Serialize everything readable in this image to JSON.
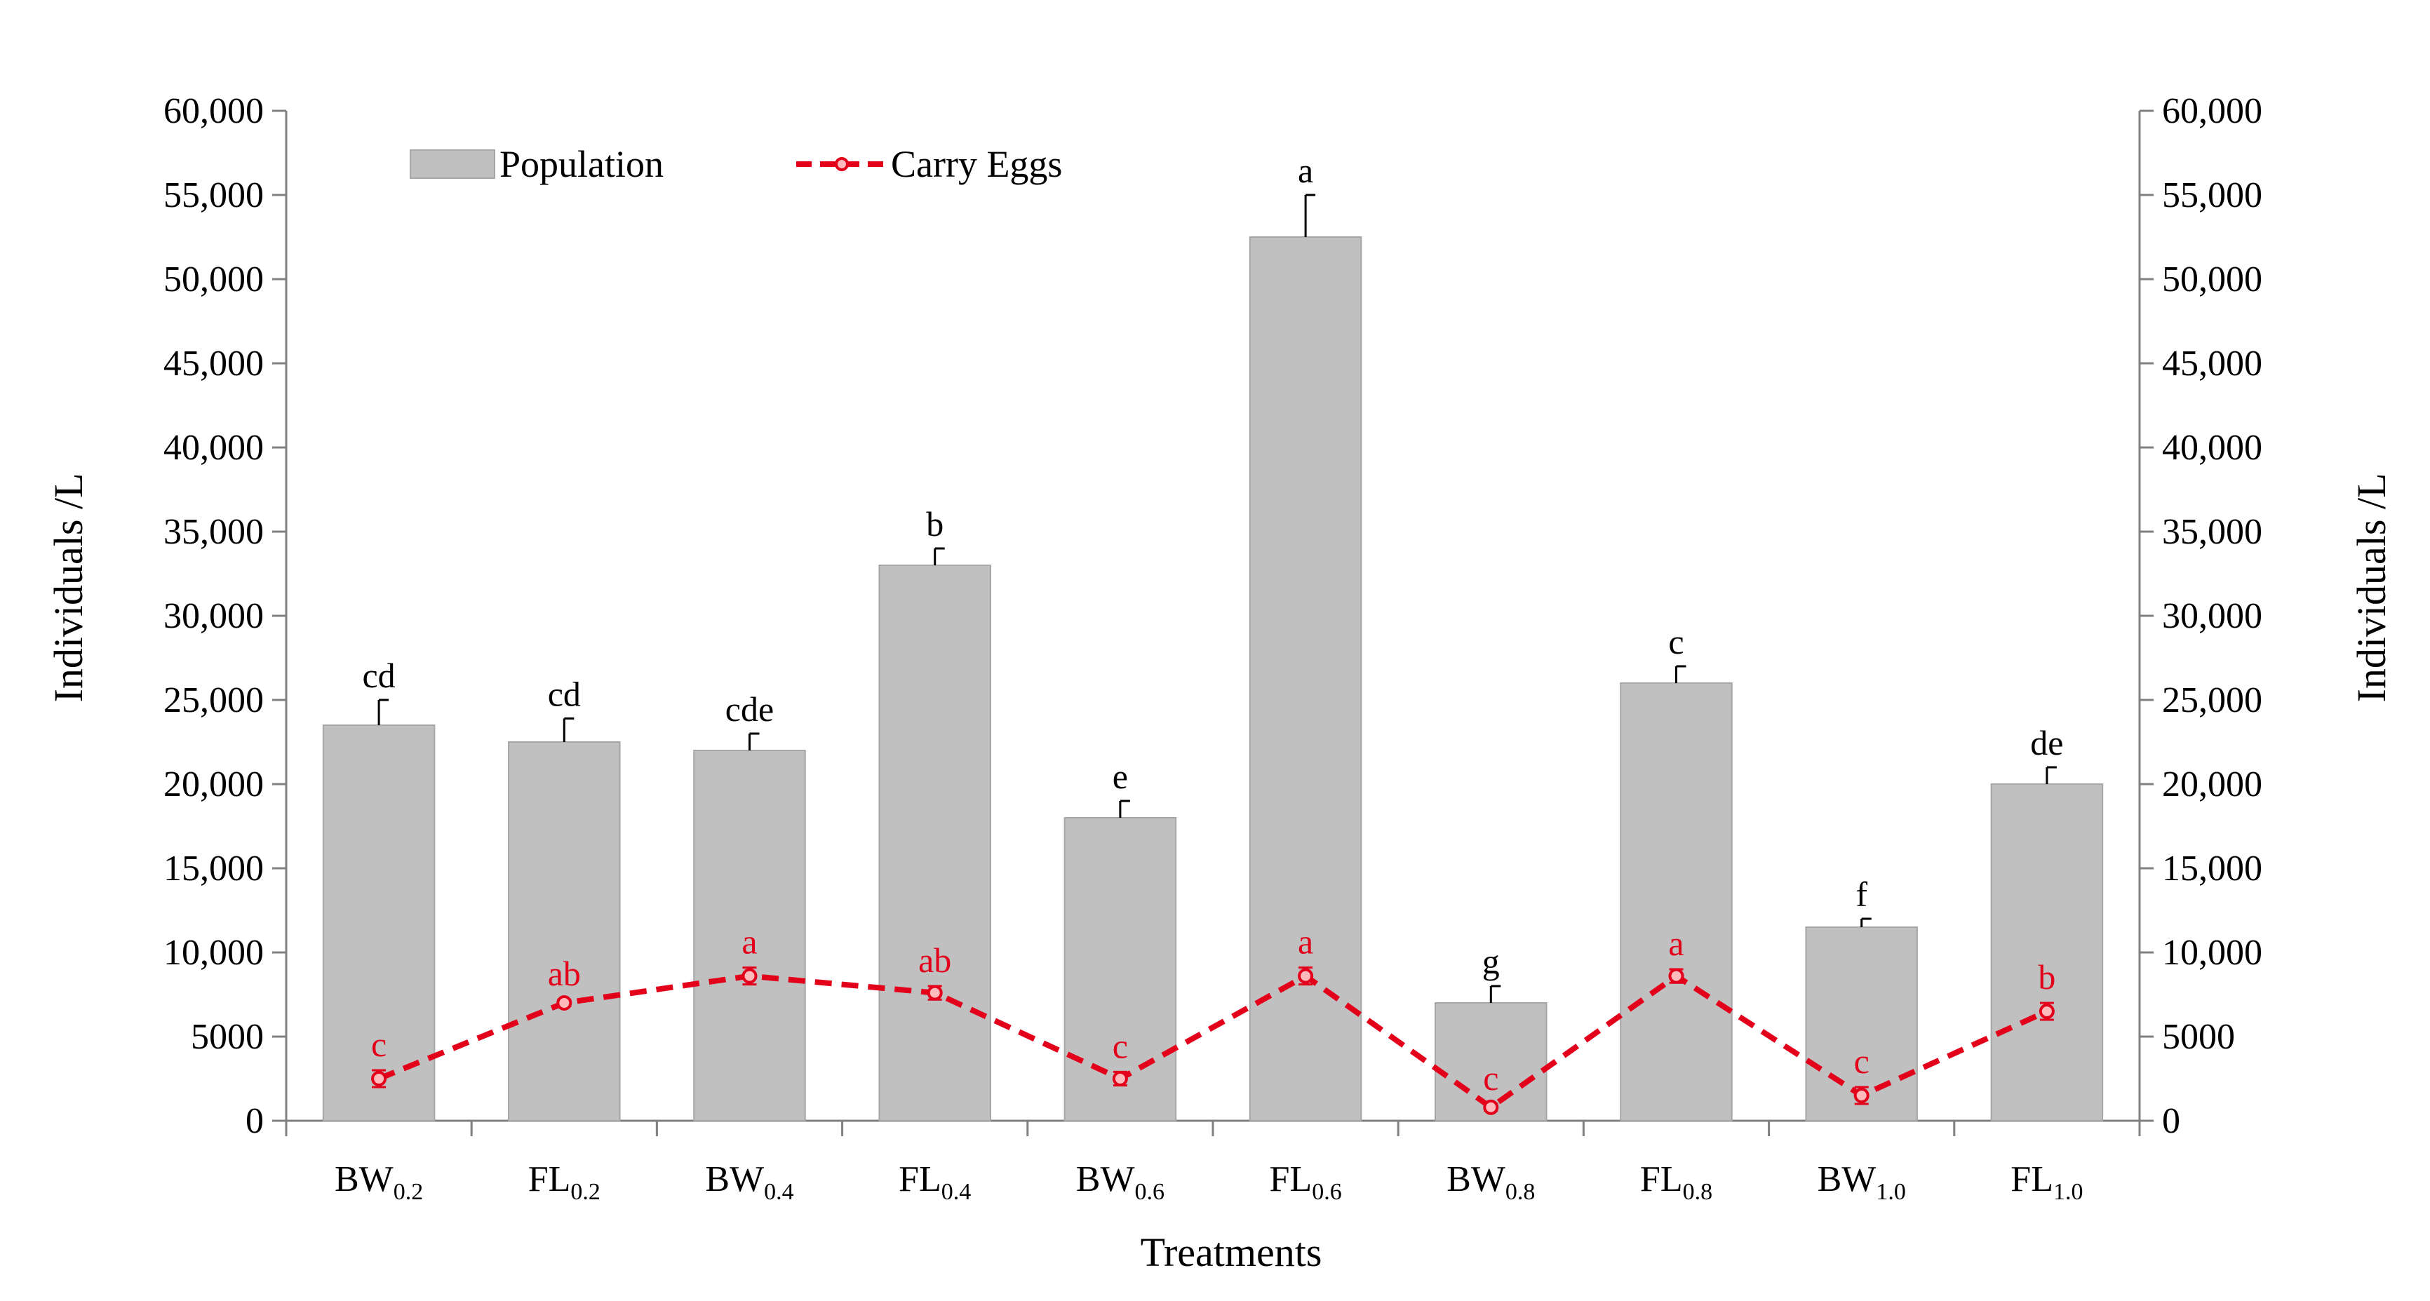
{
  "colors": {
    "bar_fill": "#c0c0c0",
    "bar_stroke": "#a6a6a6",
    "line": "#e3001b",
    "egg_label": "#e3001b",
    "axis": "#808080",
    "text": "#000000"
  },
  "chart_data": {
    "type": "bar",
    "title": "",
    "xlabel": "Treatments",
    "ylabel": "Individuals /L",
    "y2label": "Individuals /L",
    "ylim": [
      0,
      60000
    ],
    "y2lim": [
      0,
      60000
    ],
    "yticks": [
      {
        "value": 0,
        "label": "0"
      },
      {
        "value": 5000,
        "label": "5000"
      },
      {
        "value": 10000,
        "label": "10,000"
      },
      {
        "value": 15000,
        "label": "15,000"
      },
      {
        "value": 20000,
        "label": "20,000"
      },
      {
        "value": 25000,
        "label": "25,000"
      },
      {
        "value": 30000,
        "label": "30,000"
      },
      {
        "value": 35000,
        "label": "35,000"
      },
      {
        "value": 40000,
        "label": "40,000"
      },
      {
        "value": 45000,
        "label": "45,000"
      },
      {
        "value": 50000,
        "label": "50,000"
      },
      {
        "value": 55000,
        "label": "55,000"
      },
      {
        "value": 60000,
        "label": "60,000"
      }
    ],
    "grid": false,
    "legend": "top-left",
    "categories": [
      {
        "base": "BW",
        "sub": "0.2"
      },
      {
        "base": "FL",
        "sub": "0.2"
      },
      {
        "base": "BW",
        "sub": "0.4"
      },
      {
        "base": "FL",
        "sub": "0.4"
      },
      {
        "base": "BW",
        "sub": "0.6"
      },
      {
        "base": "FL",
        "sub": "0.6"
      },
      {
        "base": "BW",
        "sub": "0.8"
      },
      {
        "base": "FL",
        "sub": "0.8"
      },
      {
        "base": "BW",
        "sub": "1.0"
      },
      {
        "base": "FL",
        "sub": "1.0"
      }
    ],
    "series": [
      {
        "name": "Population",
        "kind": "bar",
        "values": [
          23500,
          22500,
          22000,
          33000,
          18000,
          52500,
          7000,
          26000,
          11500,
          20000
        ],
        "errors": [
          1500,
          1400,
          1000,
          1000,
          1000,
          2500,
          1000,
          1000,
          500,
          1000
        ],
        "letters": [
          "cd",
          "cd",
          "cde",
          "b",
          "e",
          "a",
          "g",
          "c",
          "f",
          "de"
        ]
      },
      {
        "name": "Carry Eggs",
        "kind": "line",
        "values": [
          2500,
          7000,
          8600,
          7600,
          2500,
          8600,
          800,
          8600,
          1500,
          6500
        ],
        "errors": [
          500,
          200,
          500,
          400,
          400,
          500,
          200,
          400,
          500,
          500
        ],
        "letters": [
          "c",
          "ab",
          "a",
          "ab",
          "c",
          "a",
          "c",
          "a",
          "c",
          "b"
        ]
      }
    ]
  }
}
